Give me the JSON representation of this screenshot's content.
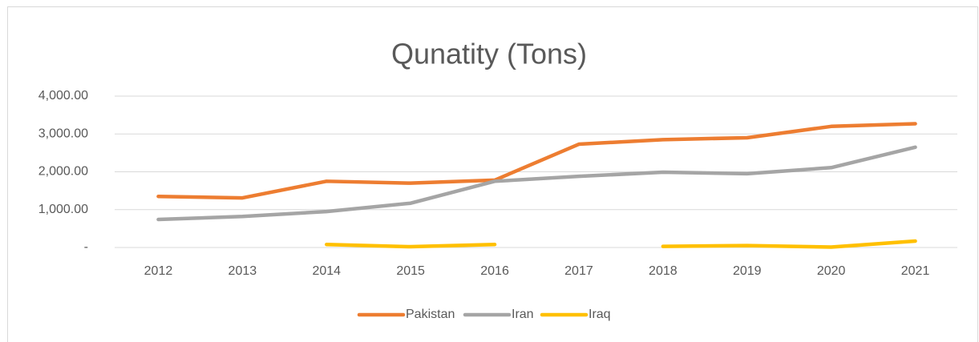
{
  "chart_data": {
    "type": "line",
    "title": "Qunatity (Tons)",
    "categories": [
      "2012",
      "2013",
      "2014",
      "2015",
      "2016",
      "2017",
      "2018",
      "2019",
      "2020",
      "2021"
    ],
    "series": [
      {
        "name": "Pakistan",
        "color": "#ed7d31",
        "values": [
          1350,
          1310,
          1750,
          1700,
          1780,
          2730,
          2850,
          2900,
          3200,
          3270
        ]
      },
      {
        "name": "Iran",
        "color": "#a5a5a5",
        "values": [
          740,
          820,
          950,
          1170,
          1750,
          1880,
          1990,
          1950,
          2110,
          2650
        ]
      },
      {
        "name": "Iraq",
        "color": "#ffc000",
        "values": [
          null,
          null,
          80,
          20,
          80,
          null,
          30,
          50,
          10,
          170
        ]
      }
    ],
    "ylim": [
      0,
      4000
    ],
    "yticks": [
      {
        "value": 0,
        "label": "-"
      },
      {
        "value": 1000,
        "label": "1,000.00"
      },
      {
        "value": 2000,
        "label": "2,000.00"
      },
      {
        "value": 3000,
        "label": "3,000.00"
      },
      {
        "value": 4000,
        "label": "4,000.00"
      }
    ],
    "grid": true,
    "legend": "bottom"
  }
}
